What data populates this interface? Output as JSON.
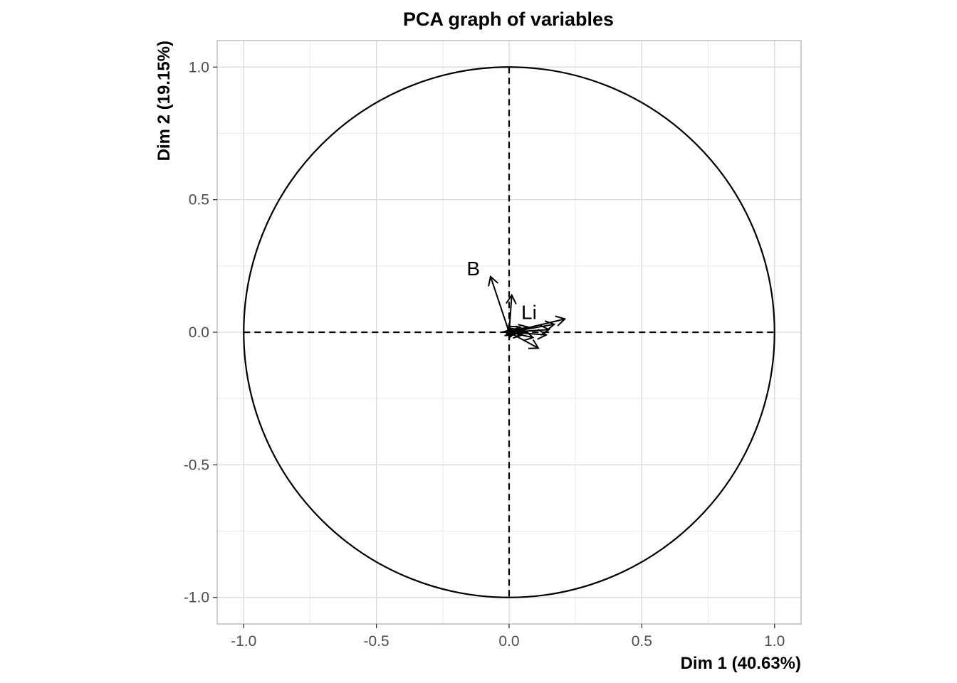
{
  "chart_data": {
    "type": "scatter",
    "subtype": "pca-correlation-circle",
    "title": "PCA graph of variables",
    "xlabel": "Dim 1 (40.63%)",
    "ylabel": "Dim 2 (19.15%)",
    "xlim": [
      -1.1,
      1.1
    ],
    "ylim": [
      -1.1,
      1.1
    ],
    "x_ticks": [
      -1.0,
      -0.5,
      0.0,
      0.5,
      1.0
    ],
    "y_ticks": [
      -1.0,
      -0.5,
      0.0,
      0.5,
      1.0
    ],
    "x_tick_labels": [
      "-1.0",
      "-0.5",
      "0.0",
      "0.5",
      "1.0"
    ],
    "y_tick_labels": [
      "-1.0",
      "-0.5",
      "0.0",
      "0.5",
      "1.0"
    ],
    "grid": true,
    "unit_circle": true,
    "reference_lines": "dashed at x=0 and y=0",
    "vectors": [
      {
        "label": "B",
        "x": -0.07,
        "y": 0.21
      },
      {
        "label": "Li",
        "x": 0.01,
        "y": 0.14
      },
      {
        "label": "",
        "x": 0.21,
        "y": 0.05
      },
      {
        "label": "",
        "x": 0.17,
        "y": 0.03
      },
      {
        "label": "",
        "x": 0.15,
        "y": 0.01
      },
      {
        "label": "",
        "x": 0.14,
        "y": -0.01
      },
      {
        "label": "",
        "x": 0.11,
        "y": -0.06
      },
      {
        "label": "",
        "x": 0.09,
        "y": -0.02
      },
      {
        "label": "",
        "x": 0.07,
        "y": 0.02
      },
      {
        "label": "",
        "x": 0.06,
        "y": 0.01
      },
      {
        "label": "",
        "x": 0.05,
        "y": -0.01
      },
      {
        "label": "",
        "x": 0.04,
        "y": 0.02
      },
      {
        "label": "",
        "x": 0.03,
        "y": 0.01
      },
      {
        "label": "",
        "x": 0.02,
        "y": -0.01
      },
      {
        "label": "",
        "x": 0.01,
        "y": 0.01
      },
      {
        "label": "",
        "x": -0.01,
        "y": -0.01
      }
    ],
    "label_placements": [
      {
        "label": "B",
        "x": -0.135,
        "y": 0.235
      },
      {
        "label": "Li",
        "x": 0.075,
        "y": 0.07
      }
    ]
  }
}
